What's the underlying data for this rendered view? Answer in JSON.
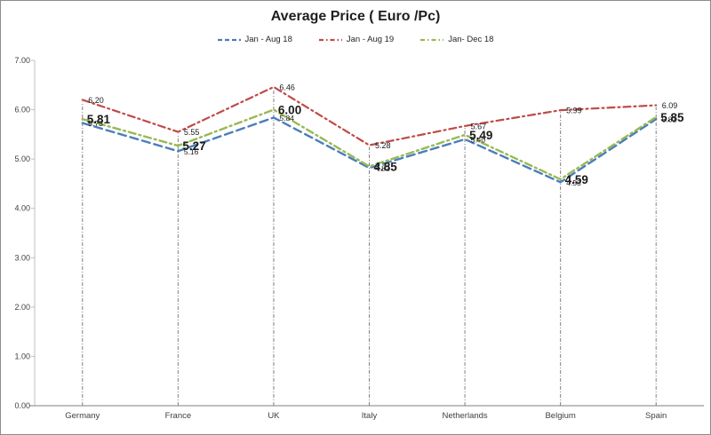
{
  "title": "Average Price ( Euro /Pc)",
  "chart_data": {
    "type": "line",
    "title": "Average Price ( Euro /Pc)",
    "categories": [
      "Germany",
      "France",
      "UK",
      "Italy",
      "Netherlands",
      "Belgium",
      "Spain"
    ],
    "series": [
      {
        "name": "Jan - Aug 18",
        "color": "#4A7EBB",
        "line_style": "dashed",
        "label_size": "small",
        "values": [
          5.73,
          5.16,
          5.84,
          4.82,
          5.4,
          4.53,
          5.81
        ]
      },
      {
        "name": "Jan - Aug 19",
        "color": "#BE4B48",
        "line_style": "dash-dot",
        "label_size": "small",
        "values": [
          6.2,
          5.55,
          6.46,
          5.28,
          5.67,
          5.99,
          6.09
        ]
      },
      {
        "name": "Jan- Dec 18",
        "color": "#98B954",
        "line_style": "dash-dot",
        "label_size": "large-bold",
        "values": [
          5.81,
          5.27,
          6.0,
          4.85,
          5.49,
          4.59,
          5.85
        ]
      }
    ],
    "ylabel": "",
    "xlabel": "",
    "ylim": [
      0,
      7
    ],
    "ytick_step": 1,
    "ytick_labels": [
      "0.00",
      "1.00",
      "2.00",
      "3.00",
      "4.00",
      "5.00",
      "6.00",
      "7.00"
    ],
    "grid": "vertical drop lines at each category",
    "legend_position": "top",
    "axis_color": "#bfbfbf",
    "tick_label_color": "#404040",
    "data_label_color": "#1a1a1a",
    "drop_line_color": "#7f7f7f"
  }
}
